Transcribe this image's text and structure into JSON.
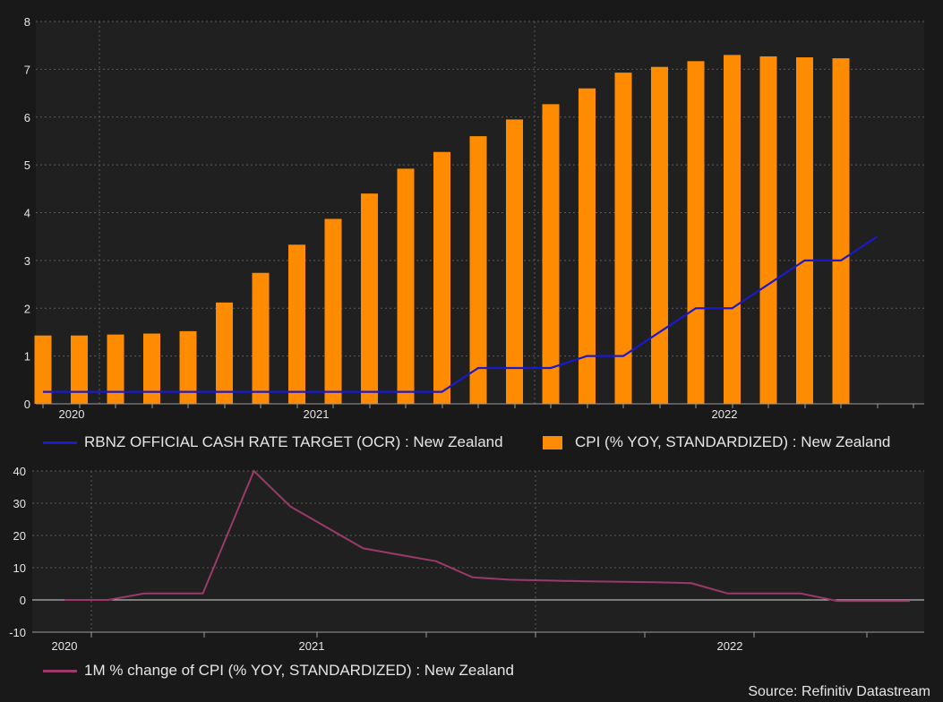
{
  "chart_data": [
    {
      "type": "bar+line",
      "x_ticks": [
        "2020",
        "2021",
        "2022"
      ],
      "y_ticks": [
        "0",
        "1",
        "2",
        "3",
        "4",
        "5",
        "6",
        "7",
        "8"
      ],
      "ylim": [
        0,
        8
      ],
      "grid": true,
      "series": [
        {
          "name": "CPI (% YOY, STANDARDIZED) : New Zealand",
          "kind": "bar",
          "color": "#ff8c00",
          "values": [
            1.43,
            1.43,
            1.45,
            1.47,
            1.52,
            2.12,
            2.74,
            3.33,
            3.87,
            4.4,
            4.92,
            5.27,
            5.6,
            5.95,
            6.27,
            6.6,
            6.93,
            7.05,
            7.17,
            7.3,
            7.27,
            7.25,
            7.23
          ]
        },
        {
          "name": "RBNZ OFFICIAL CASH RATE TARGET (OCR) : New Zealand",
          "kind": "line",
          "color": "#1a1acc",
          "values": [
            0.25,
            0.25,
            0.25,
            0.25,
            0.25,
            0.25,
            0.25,
            0.25,
            0.25,
            0.25,
            0.25,
            0.25,
            0.75,
            0.75,
            0.75,
            1.0,
            1.0,
            1.5,
            2.0,
            2.0,
            2.5,
            3.0,
            3.0,
            3.5
          ]
        }
      ]
    },
    {
      "type": "line",
      "x_ticks": [
        "2020",
        "2021",
        "2022"
      ],
      "y_ticks": [
        "40",
        "30",
        "20",
        "10",
        "0",
        "-10"
      ],
      "ylim": [
        -10,
        40
      ],
      "grid": true,
      "series": [
        {
          "name": "1M % change of CPI (% YOY, STANDARDIZED) : New Zealand",
          "kind": "line",
          "color": "#9b3a6a",
          "points": [
            [
              -0.2,
              0
            ],
            [
              1,
              0
            ],
            [
              2,
              2
            ],
            [
              3,
              2
            ],
            [
              3.6,
              2
            ],
            [
              5,
              40
            ],
            [
              6,
              29
            ],
            [
              8,
              16
            ],
            [
              9,
              14
            ],
            [
              10,
              12
            ],
            [
              11,
              7
            ],
            [
              12,
              6.3
            ],
            [
              14,
              5.8
            ],
            [
              16,
              5.5
            ],
            [
              17,
              5.2
            ],
            [
              18,
              2
            ],
            [
              19,
              2
            ],
            [
              20,
              2
            ],
            [
              21,
              -0.3
            ],
            [
              22,
              -0.3
            ],
            [
              23,
              -0.3
            ]
          ]
        }
      ]
    }
  ],
  "legend1": {
    "ocr": "RBNZ OFFICIAL CASH RATE TARGET (OCR) : New Zealand",
    "cpi": "CPI (% YOY, STANDARDIZED) : New Zealand"
  },
  "legend2": {
    "mom": "1M % change of CPI (% YOY, STANDARDIZED) : New Zealand"
  },
  "source": "Source: Refinitiv Datastream"
}
